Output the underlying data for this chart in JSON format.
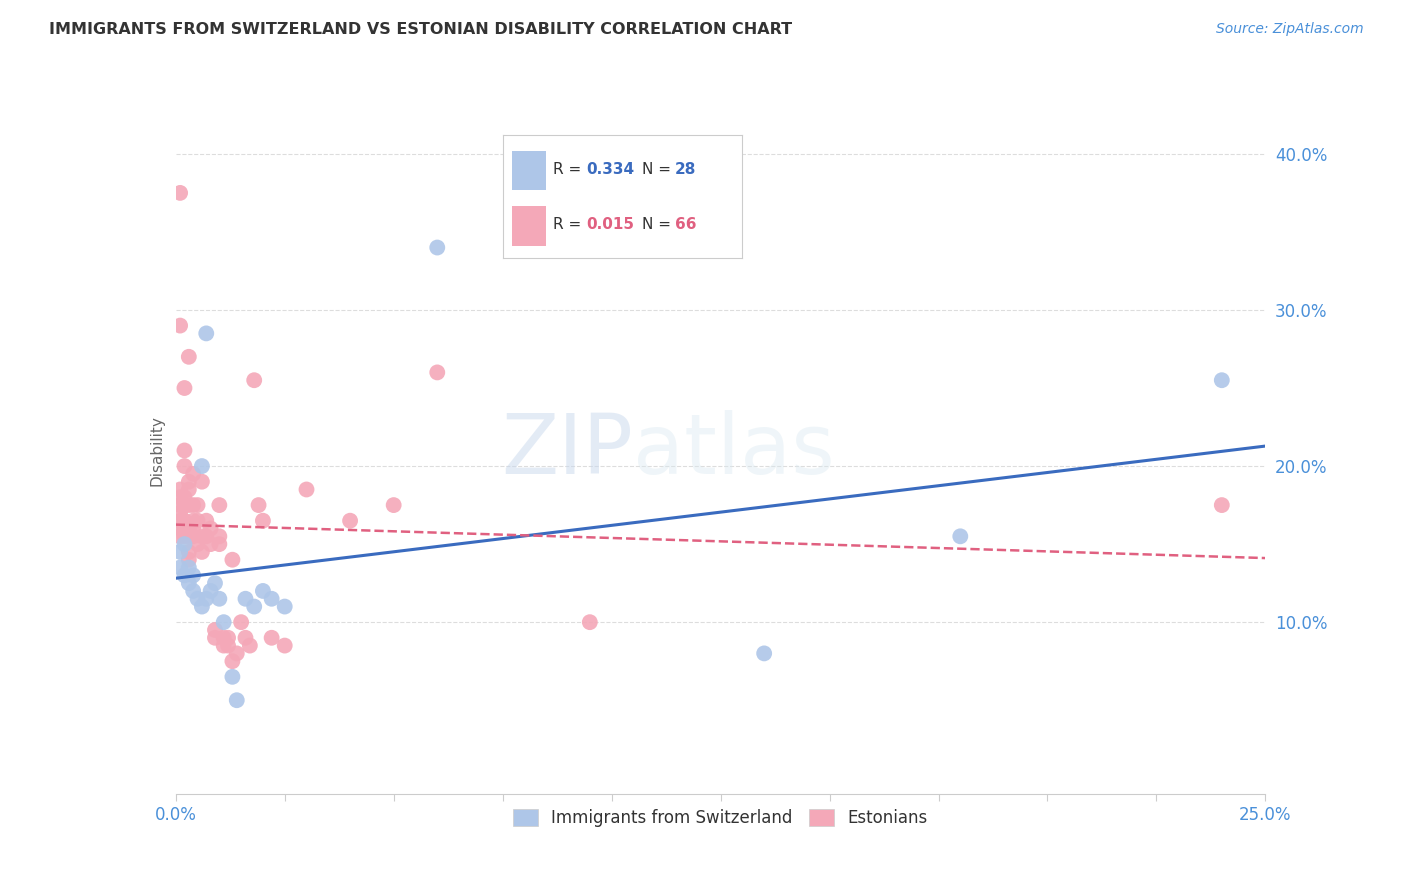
{
  "title": "IMMIGRANTS FROM SWITZERLAND VS ESTONIAN DISABILITY CORRELATION CHART",
  "source": "Source: ZipAtlas.com",
  "ylabel": "Disability",
  "xlim": [
    0.0,
    0.25
  ],
  "ylim": [
    -0.01,
    0.43
  ],
  "r_swiss": 0.334,
  "n_swiss": 28,
  "r_estonian": 0.015,
  "n_estonian": 66,
  "swiss_color": "#aec6e8",
  "estonian_color": "#f4a8b8",
  "swiss_line_color": "#3a6bbf",
  "estonian_line_color": "#e06080",
  "swiss_x": [
    0.001,
    0.001,
    0.002,
    0.002,
    0.003,
    0.003,
    0.004,
    0.004,
    0.005,
    0.006,
    0.006,
    0.007,
    0.007,
    0.008,
    0.009,
    0.01,
    0.011,
    0.013,
    0.014,
    0.016,
    0.018,
    0.02,
    0.022,
    0.025,
    0.06,
    0.135,
    0.18,
    0.24
  ],
  "swiss_y": [
    0.135,
    0.145,
    0.13,
    0.15,
    0.125,
    0.135,
    0.12,
    0.13,
    0.115,
    0.11,
    0.2,
    0.285,
    0.115,
    0.12,
    0.125,
    0.115,
    0.1,
    0.065,
    0.05,
    0.115,
    0.11,
    0.12,
    0.115,
    0.11,
    0.34,
    0.08,
    0.155,
    0.255
  ],
  "estonian_x": [
    0.001,
    0.001,
    0.001,
    0.001,
    0.001,
    0.001,
    0.001,
    0.001,
    0.001,
    0.002,
    0.002,
    0.002,
    0.002,
    0.002,
    0.002,
    0.002,
    0.002,
    0.003,
    0.003,
    0.003,
    0.003,
    0.003,
    0.003,
    0.003,
    0.003,
    0.004,
    0.004,
    0.004,
    0.004,
    0.004,
    0.005,
    0.005,
    0.005,
    0.006,
    0.006,
    0.006,
    0.007,
    0.007,
    0.008,
    0.008,
    0.009,
    0.009,
    0.01,
    0.01,
    0.01,
    0.011,
    0.011,
    0.012,
    0.012,
    0.013,
    0.013,
    0.014,
    0.015,
    0.016,
    0.017,
    0.018,
    0.019,
    0.02,
    0.022,
    0.025,
    0.03,
    0.04,
    0.05,
    0.06,
    0.095,
    0.24
  ],
  "estonian_y": [
    0.155,
    0.16,
    0.165,
    0.17,
    0.175,
    0.18,
    0.185,
    0.29,
    0.375,
    0.155,
    0.16,
    0.165,
    0.175,
    0.18,
    0.2,
    0.21,
    0.25,
    0.14,
    0.145,
    0.155,
    0.16,
    0.175,
    0.185,
    0.19,
    0.27,
    0.155,
    0.16,
    0.165,
    0.175,
    0.195,
    0.15,
    0.165,
    0.175,
    0.145,
    0.155,
    0.19,
    0.155,
    0.165,
    0.15,
    0.16,
    0.09,
    0.095,
    0.15,
    0.155,
    0.175,
    0.085,
    0.09,
    0.085,
    0.09,
    0.075,
    0.14,
    0.08,
    0.1,
    0.09,
    0.085,
    0.255,
    0.175,
    0.165,
    0.09,
    0.085,
    0.185,
    0.165,
    0.175,
    0.26,
    0.1,
    0.175
  ]
}
